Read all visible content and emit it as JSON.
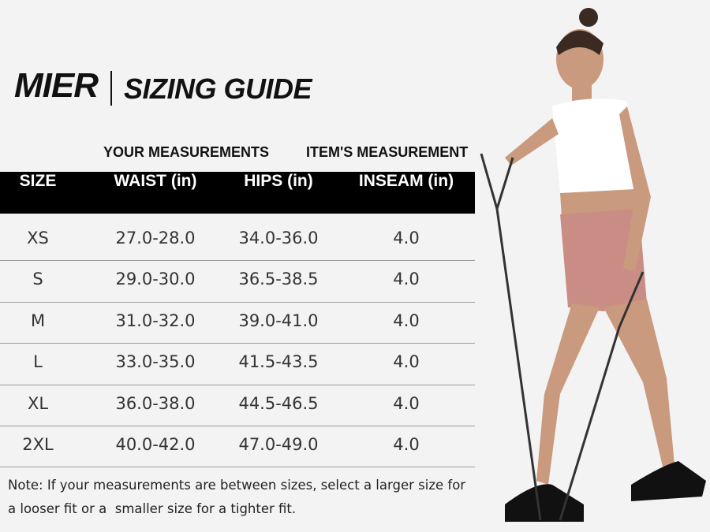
{
  "header": {
    "brand": "MIER",
    "title": "SIZING GUIDE"
  },
  "table": {
    "groups": [
      "YOUR MEASUREMENTS",
      "ITEM'S MEASUREMENT"
    ],
    "columns": [
      "SIZE",
      "WAIST (in)",
      "HIPS (in)",
      "INSEAM (in)"
    ],
    "rows": [
      [
        "XS",
        "27.0-28.0",
        "34.0-36.0",
        "4.0"
      ],
      [
        "S",
        "29.0-30.0",
        "36.5-38.5",
        "4.0"
      ],
      [
        "M",
        "31.0-32.0",
        "39.0-41.0",
        "4.0"
      ],
      [
        "L",
        "33.0-35.0",
        "41.5-43.5",
        "4.0"
      ],
      [
        "XL",
        "36.0-38.0",
        "44.5-46.5",
        "4.0"
      ],
      [
        "2XL",
        "40.0-42.0",
        "47.0-49.0",
        "4.0"
      ]
    ]
  },
  "note": {
    "lines": [
      "Note: If your measurements are between sizes, select a larger size for",
      "a looser fit or a  smaller size for a tighter fit."
    ]
  }
}
